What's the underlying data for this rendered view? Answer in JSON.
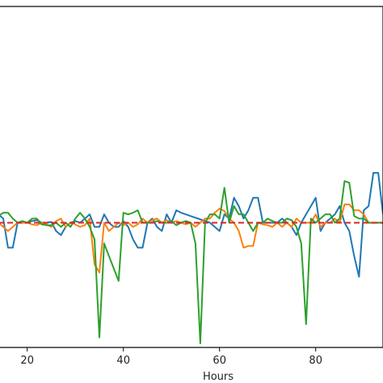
{
  "chart_data": {
    "type": "line",
    "title": "",
    "xlabel": "Hours",
    "ylabel": "",
    "xlim": [
      14,
      94
    ],
    "ylim": [
      -1.5,
      2.6
    ],
    "grid": false,
    "legend": "none",
    "x_ticks": [
      20,
      40,
      60,
      80
    ],
    "x_tick_labels": [
      "20",
      "40",
      "60",
      "80"
    ],
    "reference_line": {
      "y": 0,
      "color": "#d62728",
      "style": "dashed"
    },
    "series": [
      {
        "color": "#1f77b4",
        "x": [
          14,
          15,
          16,
          17,
          18,
          19,
          20,
          21,
          22,
          23,
          24,
          25,
          26,
          27,
          28,
          29,
          30,
          31,
          32,
          33,
          34,
          35,
          36,
          37,
          38,
          39,
          40,
          41,
          42,
          43,
          44,
          45,
          46,
          47,
          48,
          49,
          50,
          51,
          52,
          53,
          54,
          55,
          56,
          57,
          58,
          59,
          60,
          61,
          62,
          63,
          64,
          65,
          66,
          67,
          68,
          69,
          70,
          71,
          72,
          73,
          74,
          75,
          76,
          77,
          78,
          79,
          80,
          81,
          82,
          83,
          84,
          85,
          86,
          87,
          88,
          89,
          90,
          91,
          92,
          93,
          94
        ],
        "y": [
          0.1,
          0.05,
          -0.3,
          -0.3,
          0.0,
          0.0,
          0.0,
          0.02,
          0.03,
          0.0,
          0.0,
          0.01,
          -0.1,
          -0.15,
          -0.05,
          0.0,
          0.02,
          0.0,
          0.05,
          0.1,
          -0.05,
          -0.05,
          0.1,
          0.0,
          -0.05,
          -0.05,
          0.02,
          -0.05,
          -0.2,
          -0.3,
          -0.3,
          0.0,
          0.05,
          -0.05,
          -0.1,
          0.1,
          0.0,
          0.15,
          0.12,
          0.1,
          0.08,
          0.06,
          0.04,
          0.02,
          0.0,
          -0.05,
          -0.1,
          0.1,
          0.05,
          0.3,
          0.2,
          0.05,
          0.15,
          0.3,
          0.3,
          0.0,
          0.0,
          0.0,
          0.0,
          0.05,
          0.0,
          -0.05,
          -0.15,
          0.0,
          0.1,
          0.2,
          0.3,
          -0.1,
          0.0,
          0.05,
          0.1,
          0.2,
          0.0,
          -0.1,
          -0.4,
          -0.65,
          0.15,
          0.2,
          0.6,
          0.6,
          0.1
        ]
      },
      {
        "color": "#ff7f0e",
        "x": [
          14,
          15,
          16,
          17,
          18,
          19,
          20,
          21,
          22,
          23,
          24,
          25,
          26,
          27,
          28,
          29,
          30,
          31,
          32,
          33,
          34,
          35,
          36,
          37,
          38,
          39,
          40,
          41,
          42,
          43,
          44,
          45,
          46,
          47,
          48,
          49,
          50,
          51,
          52,
          53,
          54,
          55,
          56,
          57,
          58,
          59,
          60,
          61,
          62,
          63,
          64,
          65,
          66,
          67,
          68,
          69,
          70,
          71,
          72,
          73,
          74,
          75,
          76,
          77,
          78,
          79,
          80,
          81,
          82,
          83,
          84,
          85,
          86,
          87,
          88,
          89,
          90,
          91,
          92,
          93,
          94
        ],
        "y": [
          0.0,
          -0.05,
          -0.1,
          -0.05,
          0.0,
          0.0,
          0.0,
          -0.02,
          -0.03,
          0.0,
          -0.02,
          -0.05,
          0.02,
          0.05,
          -0.05,
          0.0,
          -0.02,
          -0.05,
          -0.03,
          0.05,
          -0.5,
          -0.6,
          0.0,
          -0.1,
          -0.05,
          0.0,
          -0.03,
          0.0,
          -0.05,
          -0.02,
          0.05,
          0.0,
          0.03,
          0.05,
          0.0,
          0.03,
          0.0,
          0.02,
          0.0,
          -0.02,
          0.0,
          -0.05,
          0.0,
          0.05,
          0.05,
          0.12,
          0.17,
          0.14,
          0.05,
          0.0,
          -0.1,
          -0.3,
          -0.28,
          -0.28,
          0.0,
          -0.02,
          -0.03,
          -0.05,
          0.0,
          -0.05,
          0.0,
          -0.05,
          0.05,
          0.0,
          0.0,
          0.0,
          0.1,
          -0.05,
          0.0,
          0.0,
          0.05,
          0.0,
          0.22,
          0.22,
          0.15,
          0.15,
          0.1,
          0.0,
          0.0,
          0.0,
          0.0
        ]
      },
      {
        "color": "#2ca02c",
        "x": [
          14,
          15,
          16,
          17,
          18,
          19,
          20,
          21,
          22,
          23,
          24,
          25,
          26,
          27,
          28,
          29,
          30,
          31,
          32,
          33,
          34,
          35,
          36,
          37,
          38,
          39,
          40,
          41,
          42,
          43,
          44,
          45,
          46,
          47,
          48,
          49,
          50,
          51,
          52,
          53,
          54,
          55,
          56,
          57,
          58,
          59,
          60,
          61,
          62,
          63,
          64,
          65,
          66,
          67,
          68,
          69,
          70,
          71,
          72,
          73,
          74,
          75,
          76,
          77,
          78,
          79,
          80,
          81,
          82,
          83,
          84,
          85,
          86,
          87,
          88,
          89,
          90,
          91,
          92,
          93,
          94
        ],
        "y": [
          0.08,
          0.12,
          0.12,
          0.05,
          0.0,
          0.02,
          0.0,
          0.05,
          0.05,
          -0.02,
          -0.03,
          -0.03,
          0.0,
          -0.05,
          0.0,
          -0.05,
          0.05,
          0.12,
          0.05,
          -0.05,
          -0.2,
          -1.38,
          -0.25,
          -0.4,
          -0.55,
          -0.7,
          0.12,
          0.1,
          0.12,
          0.15,
          0.0,
          0.0,
          0.0,
          0.02,
          0.0,
          0.0,
          0.02,
          -0.03,
          0.0,
          0.02,
          0.0,
          -0.25,
          -1.45,
          0.0,
          0.1,
          0.1,
          0.05,
          0.42,
          0.0,
          0.2,
          0.1,
          0.1,
          0.0,
          -0.1,
          0.0,
          0.0,
          0.05,
          0.02,
          0.0,
          0.0,
          0.05,
          0.03,
          -0.05,
          -0.25,
          -1.22,
          0.05,
          0.0,
          0.05,
          0.1,
          0.1,
          0.0,
          0.05,
          0.5,
          0.48,
          0.08,
          0.05,
          0.05,
          0.0,
          0.0,
          0.0,
          0.0
        ]
      }
    ]
  }
}
